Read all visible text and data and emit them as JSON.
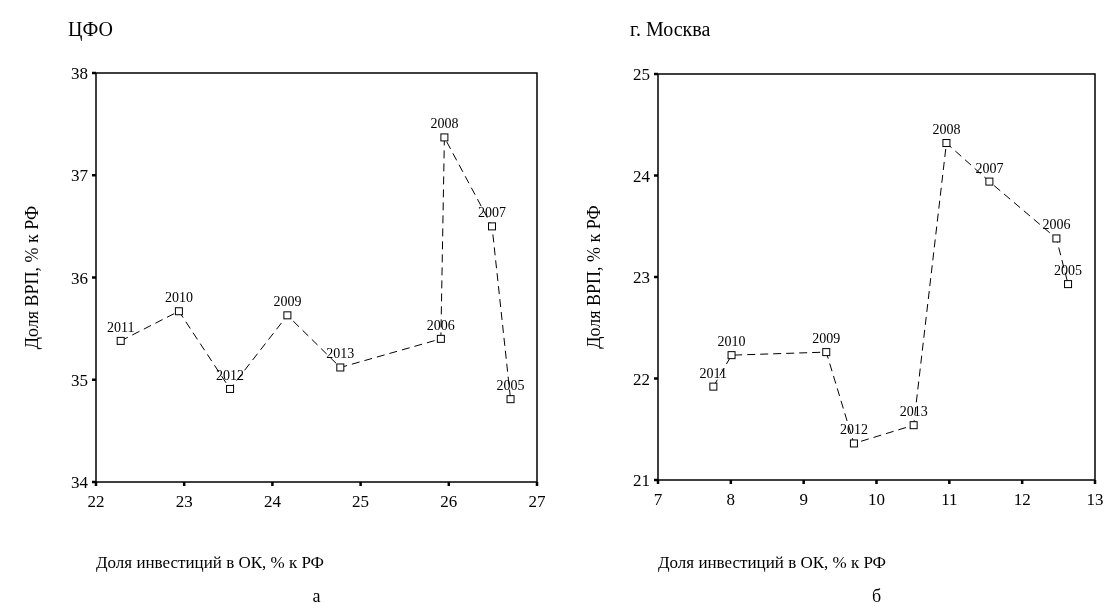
{
  "chart_data": [
    {
      "type": "line",
      "title": "ЦФО",
      "xlabel": "Доля инвестиций в ОК, % к РФ",
      "ylabel": "Доля ВРП, % к РФ",
      "xlim": [
        22,
        27
      ],
      "xticks": [
        22,
        23,
        24,
        25,
        26,
        27
      ],
      "ylim": [
        34,
        38
      ],
      "yticks": [
        34,
        35,
        36,
        37,
        38
      ],
      "grid": false,
      "marker": "square",
      "line_style": "dashed",
      "series": [
        {
          "color": "#000000",
          "x": [
            22.28,
            22.94,
            23.52,
            24.17,
            24.77,
            25.91,
            25.95,
            26.49,
            26.7
          ],
          "values": [
            35.38,
            35.67,
            34.91,
            35.63,
            35.12,
            35.4,
            37.37,
            36.5,
            34.81
          ]
        }
      ],
      "annotations": [
        {
          "text": "2011",
          "x": 22.28,
          "y": 35.38
        },
        {
          "text": "2010",
          "x": 22.94,
          "y": 35.67
        },
        {
          "text": "2012",
          "x": 23.52,
          "y": 34.91
        },
        {
          "text": "2009",
          "x": 24.17,
          "y": 35.63
        },
        {
          "text": "2013",
          "x": 24.77,
          "y": 35.12
        },
        {
          "text": "2006",
          "x": 25.91,
          "y": 35.4
        },
        {
          "text": "2008",
          "x": 25.95,
          "y": 37.37
        },
        {
          "text": "2007",
          "x": 26.49,
          "y": 36.5
        },
        {
          "text": "2005",
          "x": 26.7,
          "y": 34.81
        },
        "а"
      ]
    },
    {
      "type": "line",
      "title": "г. Москва",
      "xlabel": "Доля инвестиций в ОК, % к РФ",
      "ylabel": "Доля ВРП, % к РФ",
      "xlim": [
        7,
        13
      ],
      "xticks": [
        7,
        8,
        9,
        10,
        11,
        12,
        13
      ],
      "ylim": [
        21,
        25
      ],
      "yticks": [
        21,
        22,
        23,
        24,
        25
      ],
      "grid": false,
      "marker": "square",
      "line_style": "dashed",
      "series": [
        {
          "color": "#000000",
          "x": [
            7.76,
            8.01,
            9.31,
            9.69,
            10.51,
            10.96,
            11.55,
            12.47,
            12.63
          ],
          "values": [
            21.92,
            22.23,
            22.26,
            21.36,
            21.54,
            24.32,
            23.94,
            23.38,
            22.93
          ]
        }
      ],
      "annotations": [
        {
          "text": "2011",
          "x": 7.76,
          "y": 21.92
        },
        {
          "text": "2010",
          "x": 8.01,
          "y": 22.23
        },
        {
          "text": "2009",
          "x": 9.31,
          "y": 22.26
        },
        {
          "text": "2012",
          "x": 9.69,
          "y": 21.36
        },
        {
          "text": "2013",
          "x": 10.51,
          "y": 21.54
        },
        {
          "text": "2008",
          "x": 10.96,
          "y": 24.32
        },
        {
          "text": "2007",
          "x": 11.55,
          "y": 23.94
        },
        {
          "text": "2006",
          "x": 12.47,
          "y": 23.38
        },
        {
          "text": "2005",
          "x": 12.63,
          "y": 22.93
        },
        "б"
      ]
    }
  ]
}
